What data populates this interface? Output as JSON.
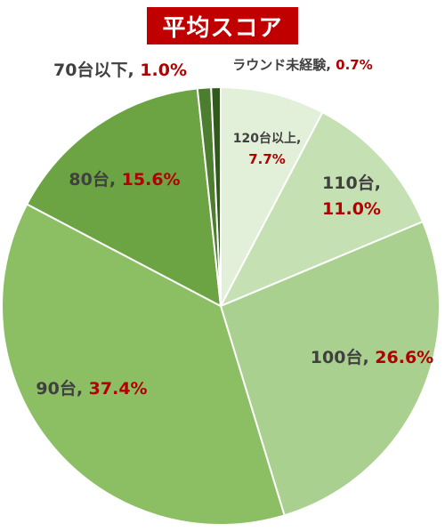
{
  "chart_data": {
    "type": "pie",
    "title": "平均スコア",
    "slices": [
      {
        "label": "120台以上",
        "value": 7.7,
        "value_text": "7.7%",
        "color": "#e2efd9"
      },
      {
        "label": "110台",
        "value": 11.0,
        "value_text": "11.0%",
        "color": "#c5e0b3"
      },
      {
        "label": "100台",
        "value": 26.6,
        "value_text": "26.6%",
        "color": "#a9d08e"
      },
      {
        "label": "90台",
        "value": 37.4,
        "value_text": "37.4%",
        "color": "#8cbf64"
      },
      {
        "label": "80台",
        "value": 15.6,
        "value_text": "15.6%",
        "color": "#6ca343"
      },
      {
        "label": "70台以下",
        "value": 1.0,
        "value_text": "1.0%",
        "color": "#4d7d2e"
      },
      {
        "label": "ラウンド未経験",
        "value": 0.7,
        "value_text": "0.7%",
        "color": "#2f5a1c"
      }
    ],
    "start": "12 o'clock, clockwise",
    "legend": "none (data labels beside slices)"
  }
}
